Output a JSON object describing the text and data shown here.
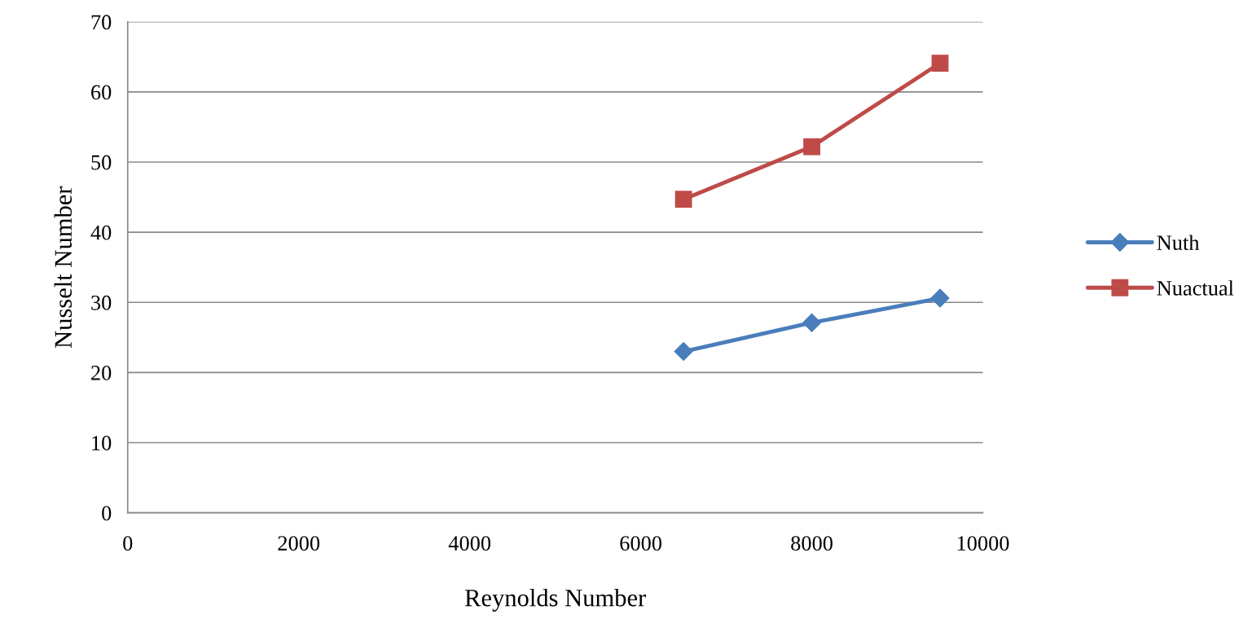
{
  "chart_data": {
    "type": "line",
    "xlabel": "Reynolds Number",
    "ylabel": "Nusselt Number",
    "xlim": [
      0,
      10000
    ],
    "xticks": [
      0,
      2000,
      4000,
      6000,
      8000,
      10000
    ],
    "ylim": [
      0,
      70
    ],
    "yticks": [
      0,
      10,
      20,
      30,
      40,
      50,
      60,
      70
    ],
    "grid": "y",
    "legend": "right",
    "series": [
      {
        "name": "Nuth",
        "color": "#4a7ebb",
        "marker": "diamond",
        "x": [
          6500,
          8000,
          9500
        ],
        "values": [
          23.0,
          27.1,
          30.6
        ]
      },
      {
        "name": "Nuactual",
        "color": "#be4b48",
        "marker": "square",
        "x": [
          6500,
          8000,
          9500
        ],
        "values": [
          44.7,
          52.2,
          64.1
        ]
      }
    ]
  }
}
